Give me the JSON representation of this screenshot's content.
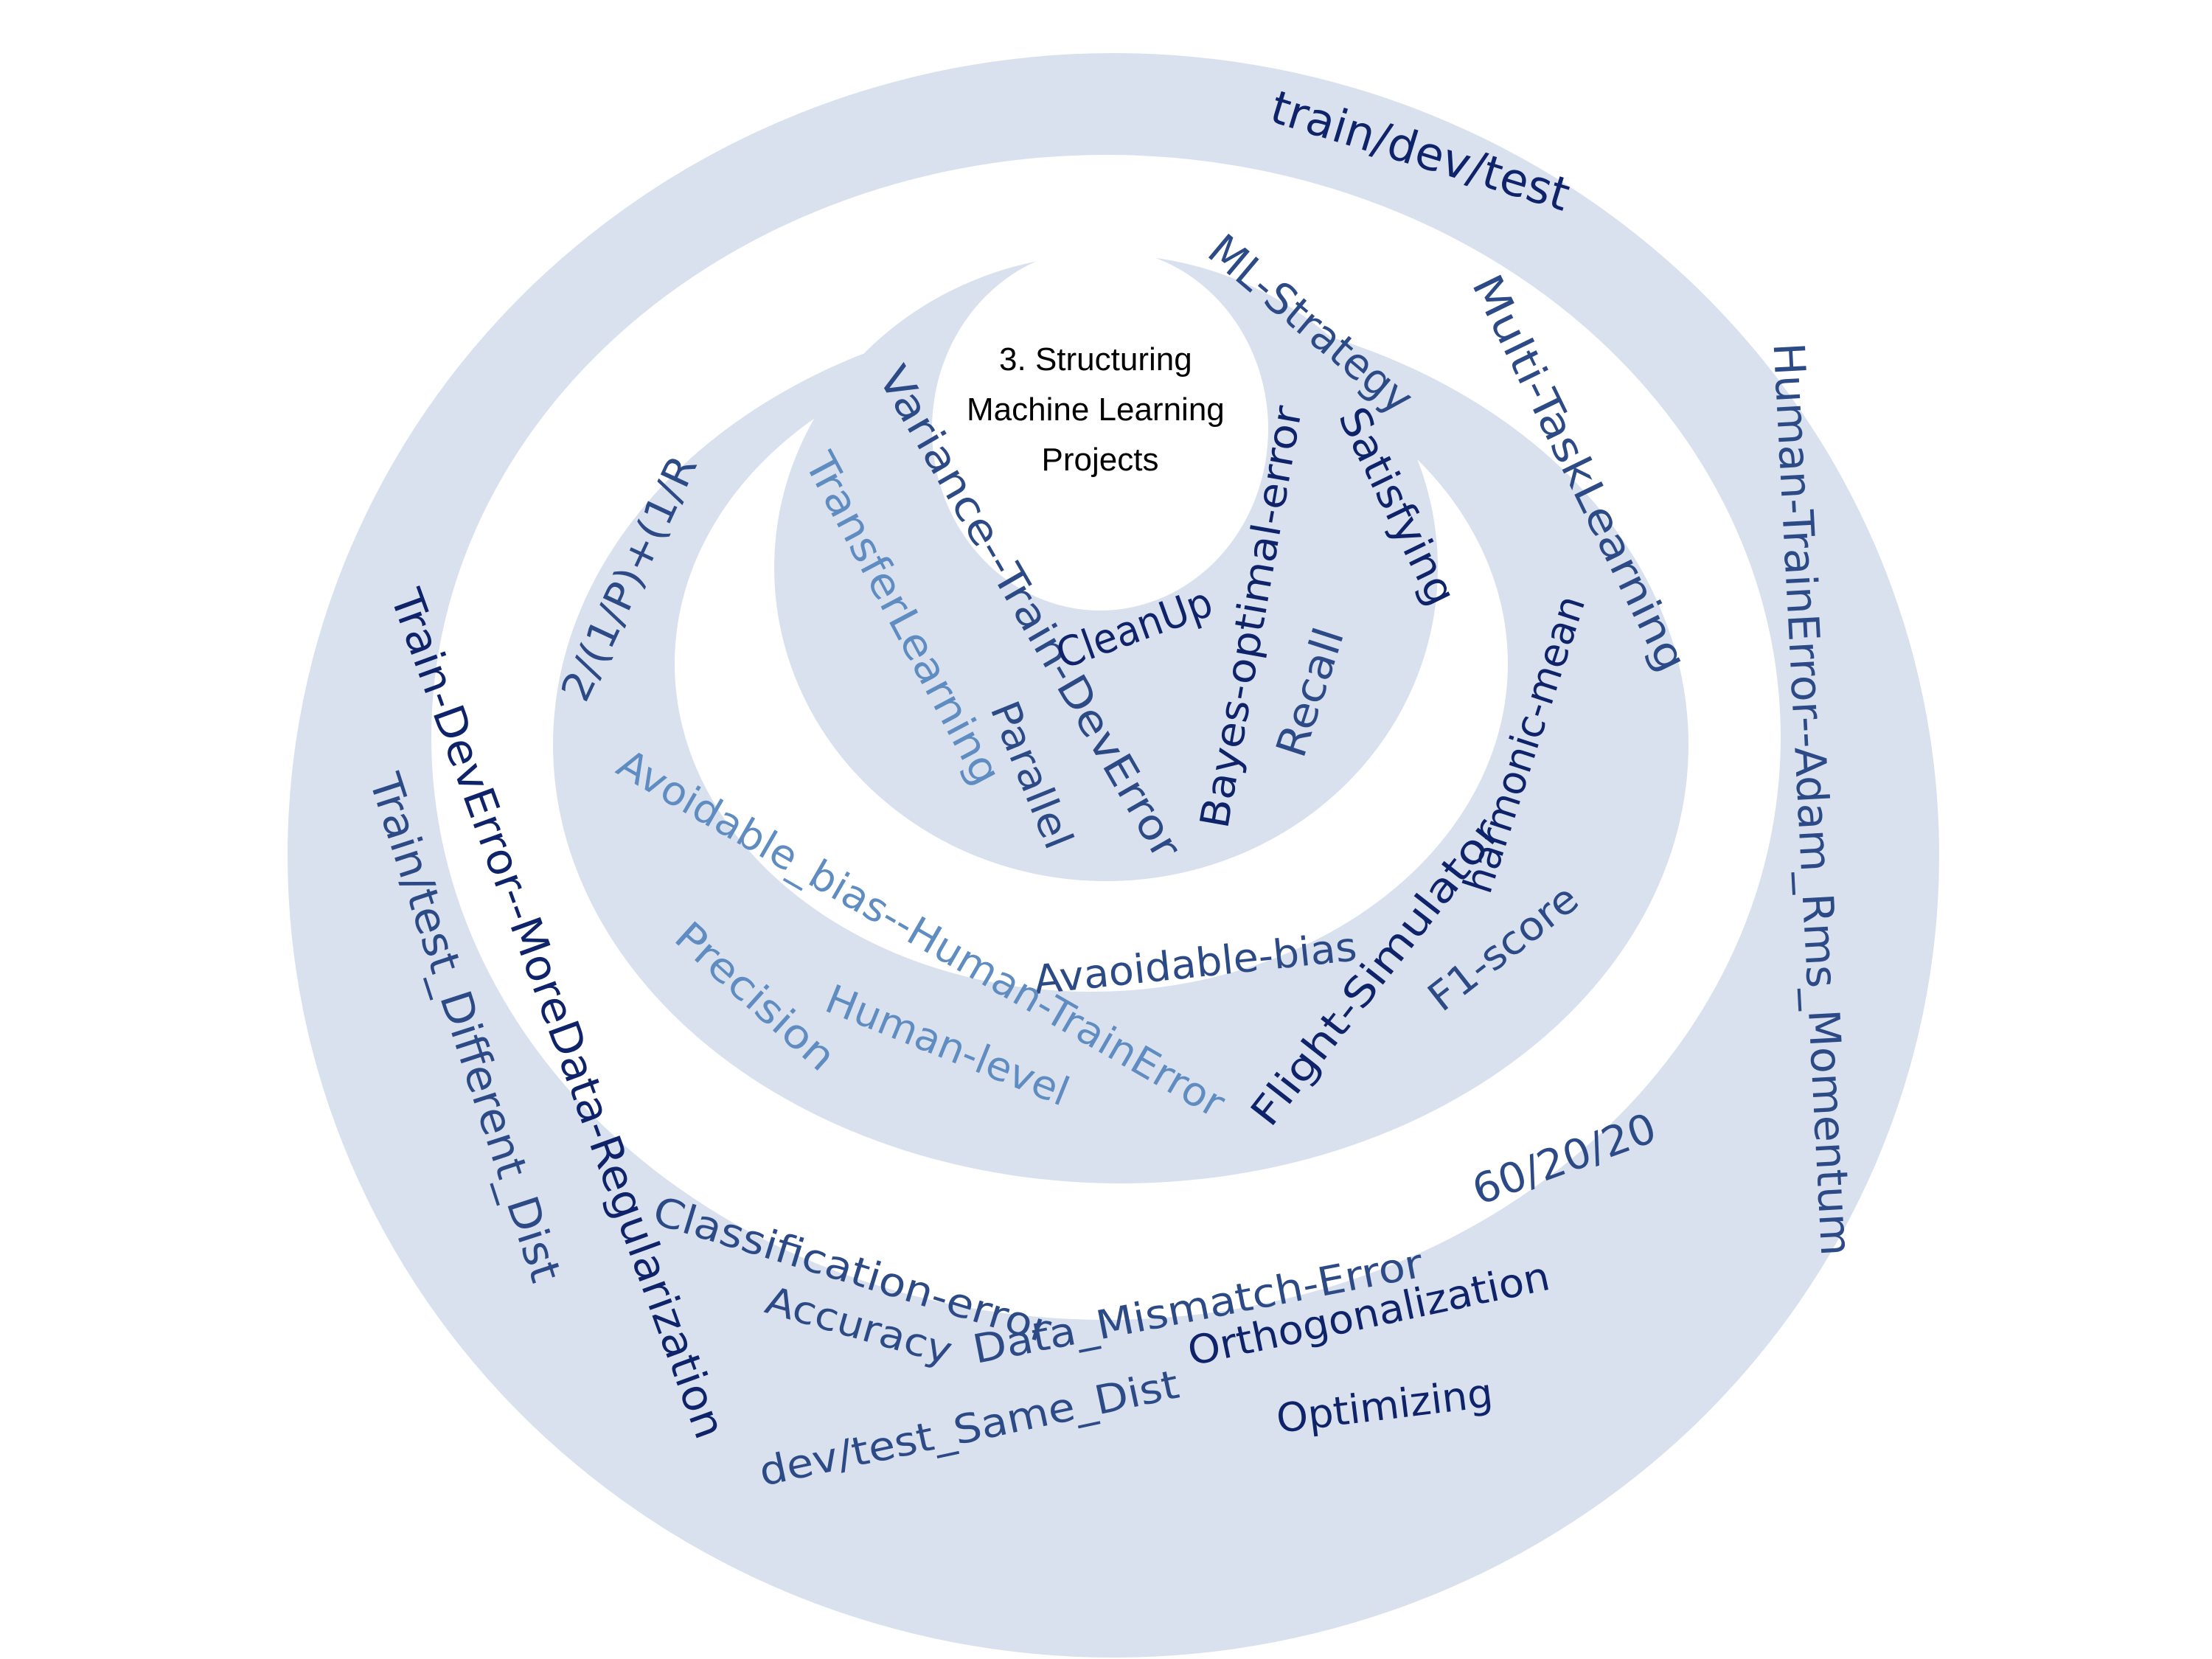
{
  "center_title": [
    "3. Structuring",
    "Machine Learning",
    "Projects"
  ],
  "colors": {
    "ring_fill": "#DAE1EE",
    "ring_gap": "#FFFFFF",
    "text_navy": "#0E2369",
    "text_blue": "#2C4A86",
    "text_mid": "#375A91",
    "text_light": "#5F8CC1"
  },
  "words": [
    {
      "id": "train-dev-test",
      "text": "train/dev/test",
      "tone": "navy"
    },
    {
      "id": "human-trainerror-adam",
      "text": "Human-TrainError--Adam_Rms_Momentum",
      "tone": "blue"
    },
    {
      "id": "train-test-different-dist",
      "text": "Train/test_Different_Dist",
      "tone": "blue"
    },
    {
      "id": "train-deverror-moredata",
      "text": "Train-DevError--MoreData-Regularization",
      "tone": "navy"
    },
    {
      "id": "classification-error",
      "text": "Classification-error",
      "tone": "blue"
    },
    {
      "id": "accuracy",
      "text": "Accuracy",
      "tone": "blue"
    },
    {
      "id": "data-mismatch-error",
      "text": "Data_Mismatch-Error",
      "tone": "blue"
    },
    {
      "id": "orthogonalization",
      "text": "Orthogonalization",
      "tone": "navy"
    },
    {
      "id": "optimizing",
      "text": "Optimizing",
      "tone": "navy"
    },
    {
      "id": "dev-test-same-dist",
      "text": "dev/test_Same_Dist",
      "tone": "blue"
    },
    {
      "id": "split-60-20-20",
      "text": "60/20/20",
      "tone": "blue"
    },
    {
      "id": "ml-strategy",
      "text": "ML-Strategy",
      "tone": "blue"
    },
    {
      "id": "multi-task-learning",
      "text": "Multi-TaskLearning",
      "tone": "blue"
    },
    {
      "id": "satisfying",
      "text": "Satisfying",
      "tone": "navy"
    },
    {
      "id": "bayes-optimal-error",
      "text": "Bayes-optimal-error",
      "tone": "navy"
    },
    {
      "id": "recall",
      "text": "Recall",
      "tone": "blue"
    },
    {
      "id": "harmonic-mean",
      "text": "harmonic-mean",
      "tone": "navy"
    },
    {
      "id": "f1-score",
      "text": "F1-score",
      "tone": "blue"
    },
    {
      "id": "flight-simulator",
      "text": "Flight-Simulator",
      "tone": "navy"
    },
    {
      "id": "avaoidable-bias",
      "text": "Avaoidable-bias",
      "tone": "blue"
    },
    {
      "id": "avoidable-bias-human-trainerror",
      "text": "Avoidable_bias--Human-TrainError",
      "tone": "light"
    },
    {
      "id": "human-level",
      "text": "Human-level",
      "tone": "light"
    },
    {
      "id": "precision",
      "text": "Precision",
      "tone": "light"
    },
    {
      "id": "f1-formula",
      "text": "2/(1/P)+(1/R",
      "tone": "blue"
    },
    {
      "id": "variance-train-deverror",
      "text": "Variance--Train-DevError",
      "tone": "blue"
    },
    {
      "id": "transfer-learning",
      "text": "TransferLearning",
      "tone": "light"
    },
    {
      "id": "cleanup",
      "text": "CleanUp",
      "tone": "navy"
    },
    {
      "id": "parallel",
      "text": "Parallel",
      "tone": "blue"
    }
  ]
}
